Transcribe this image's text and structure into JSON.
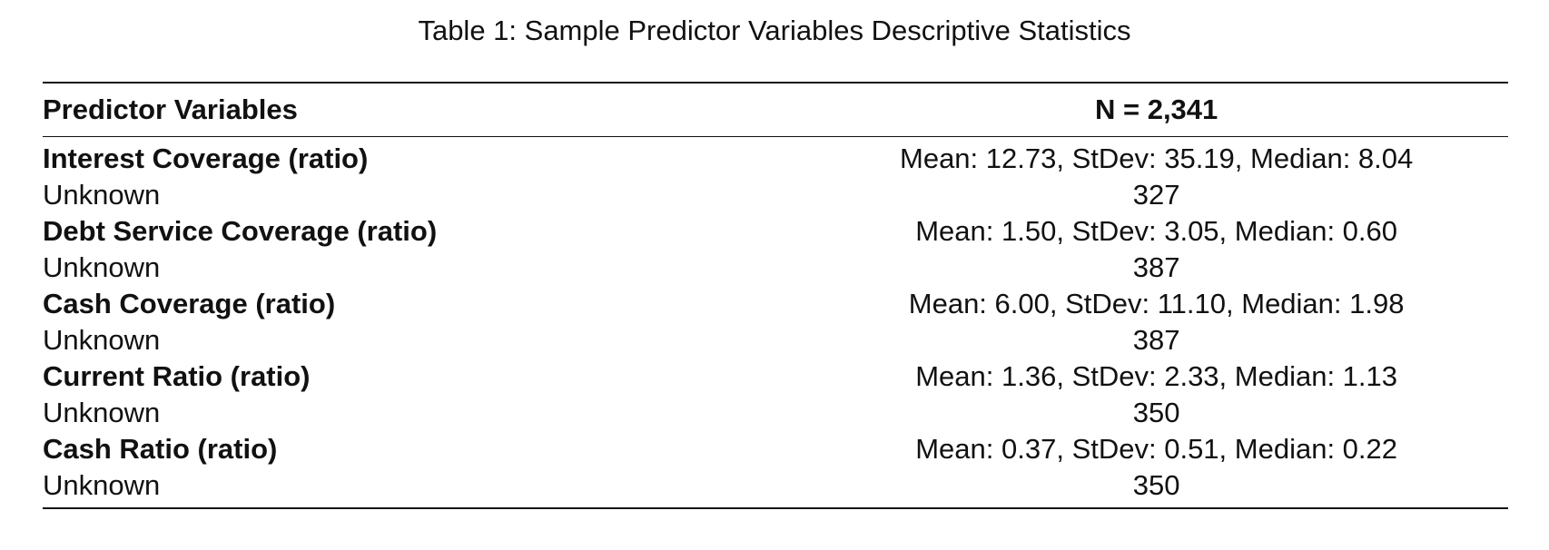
{
  "caption": "Table 1: Sample Predictor Variables Descriptive Statistics",
  "table": {
    "headers": [
      "Predictor Variables",
      "N = 2,341"
    ],
    "rows": [
      {
        "label": "Interest Coverage (ratio)",
        "value": "Mean: 12.73, StDev: 35.19, Median: 8.04",
        "kind": "predictor"
      },
      {
        "label": "Unknown",
        "value": "327",
        "kind": "unknown"
      },
      {
        "label": "Debt Service Coverage (ratio)",
        "value": "Mean: 1.50, StDev: 3.05, Median: 0.60",
        "kind": "predictor"
      },
      {
        "label": "Unknown",
        "value": "387",
        "kind": "unknown"
      },
      {
        "label": "Cash Coverage (ratio)",
        "value": "Mean: 6.00, StDev: 11.10, Median: 1.98",
        "kind": "predictor"
      },
      {
        "label": "Unknown",
        "value": "387",
        "kind": "unknown"
      },
      {
        "label": "Current Ratio (ratio)",
        "value": "Mean: 1.36, StDev: 2.33, Median: 1.13",
        "kind": "predictor"
      },
      {
        "label": "Unknown",
        "value": "350",
        "kind": "unknown"
      },
      {
        "label": "Cash Ratio (ratio)",
        "value": "Mean: 0.37, StDev: 0.51, Median: 0.22",
        "kind": "predictor"
      },
      {
        "label": "Unknown",
        "value": "350",
        "kind": "unknown"
      }
    ]
  }
}
